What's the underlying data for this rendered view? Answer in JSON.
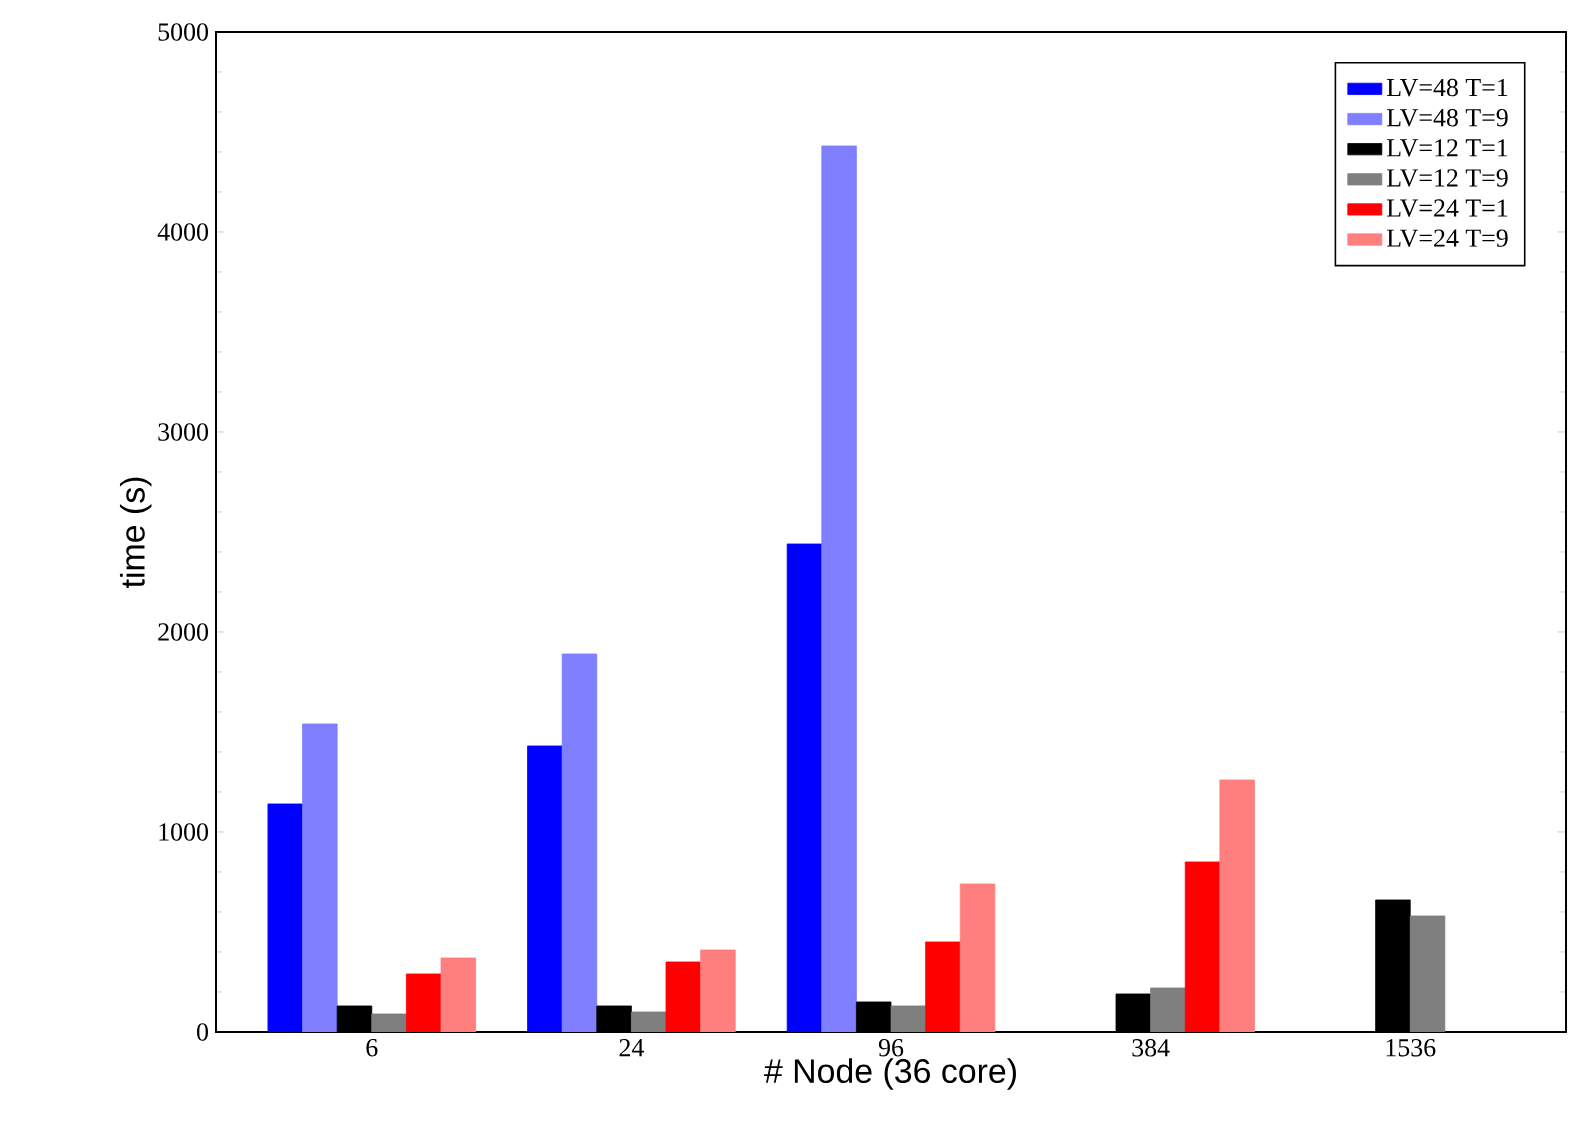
{
  "chart_data": {
    "type": "bar",
    "xlabel": "# Node (36 core)",
    "ylabel": "time (s)",
    "categories": [
      "6",
      "24",
      "96",
      "384",
      "1536"
    ],
    "series": [
      {
        "name": "LV=48 T=1",
        "color": "#0000ff",
        "values": [
          1140,
          1430,
          2440,
          null,
          null
        ]
      },
      {
        "name": "LV=48 T=9",
        "color": "#7f7fff",
        "values": [
          1540,
          1890,
          4430,
          null,
          null
        ]
      },
      {
        "name": "LV=12 T=1",
        "color": "#000000",
        "values": [
          130,
          130,
          150,
          190,
          660
        ]
      },
      {
        "name": "LV=12 T=9",
        "color": "#7f7f7f",
        "values": [
          90,
          100,
          130,
          220,
          580
        ]
      },
      {
        "name": "LV=24 T=1",
        "color": "#ff0000",
        "values": [
          290,
          350,
          450,
          850,
          null
        ]
      },
      {
        "name": "LV=24 T=9",
        "color": "#ff7f7f",
        "values": [
          370,
          410,
          740,
          1260,
          null
        ]
      }
    ],
    "ylim": [
      0,
      5000
    ],
    "yticks": [
      0,
      1000,
      2000,
      3000,
      4000,
      5000
    ],
    "grid": false,
    "legend": "top right"
  }
}
